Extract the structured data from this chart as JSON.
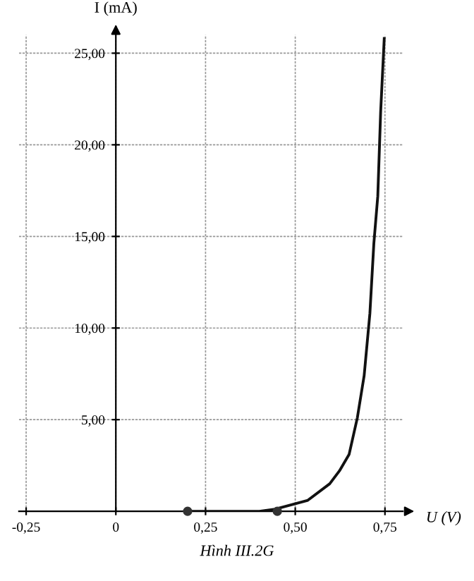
{
  "chart_data": {
    "type": "line",
    "xlabel": "U (V)",
    "ylabel": "I (mA)",
    "annotations": [
      "Hình III.2G"
    ],
    "xlim": [
      -0.27,
      0.8
    ],
    "ylim": [
      0,
      26
    ],
    "xticks": [
      {
        "value": -0.25,
        "label": "-0,25"
      },
      0,
      {
        "value": 0.25,
        "label": "0,25"
      },
      {
        "value": 0.5,
        "label": "0,50"
      },
      {
        "value": 0.75,
        "label": "0,75"
      }
    ],
    "yticks": [
      {
        "value": 5,
        "label": "5,00"
      },
      {
        "value": 10,
        "label": "10,00"
      },
      {
        "value": 15,
        "label": "15,00"
      },
      {
        "value": 20,
        "label": "20,00"
      },
      {
        "value": 25,
        "label": "25,00"
      }
    ],
    "grid": true,
    "series": [
      {
        "color": "#111111",
        "x": [
          0.2,
          0.3,
          0.4,
          0.44,
          0.535,
          0.596,
          0.623,
          0.65,
          0.673,
          0.692,
          0.708,
          0.719,
          0.73,
          0.738,
          0.748
        ],
        "values": [
          0,
          0,
          0,
          0.1,
          0.6,
          1.5,
          2.2,
          3.1,
          5.1,
          7.4,
          10.8,
          14.6,
          17.2,
          21.8,
          25.8
        ]
      },
      {
        "type": "scatter",
        "color": "#333333",
        "marker": "circle",
        "x": [
          0.2,
          0.45
        ],
        "values": [
          0,
          0
        ]
      }
    ]
  }
}
